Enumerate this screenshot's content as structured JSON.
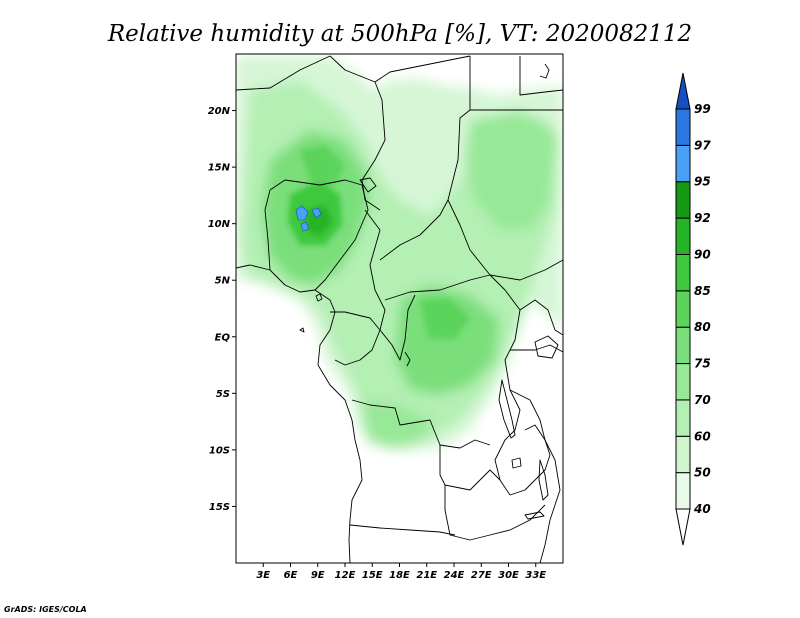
{
  "title": "Relative humidity at 500hPa [%], VT: 2020082112",
  "credit": "GrADS: IGES/COLA",
  "map": {
    "lon_range": [
      0,
      36
    ],
    "lat_range": [
      -20,
      25
    ],
    "lat_ticks": [
      {
        "value": 20,
        "label": "20N"
      },
      {
        "value": 15,
        "label": "15N"
      },
      {
        "value": 10,
        "label": "10N"
      },
      {
        "value": 5,
        "label": "5N"
      },
      {
        "value": 0,
        "label": "EQ"
      },
      {
        "value": -5,
        "label": "5S"
      },
      {
        "value": -10,
        "label": "10S"
      },
      {
        "value": -15,
        "label": "15S"
      }
    ],
    "lon_ticks": [
      {
        "value": 3,
        "label": "3E"
      },
      {
        "value": 6,
        "label": "6E"
      },
      {
        "value": 9,
        "label": "9E"
      },
      {
        "value": 12,
        "label": "12E"
      },
      {
        "value": 15,
        "label": "15E"
      },
      {
        "value": 18,
        "label": "18E"
      },
      {
        "value": 21,
        "label": "21E"
      },
      {
        "value": 24,
        "label": "24E"
      },
      {
        "value": 27,
        "label": "27E"
      },
      {
        "value": 30,
        "label": "30E"
      },
      {
        "value": 33,
        "label": "33E"
      }
    ]
  },
  "colorbar": {
    "levels": [
      "40",
      "50",
      "60",
      "70",
      "75",
      "80",
      "85",
      "90",
      "92",
      "95",
      "97",
      "99"
    ],
    "colors": [
      "#e8fae8",
      "#cff5cf",
      "#b4efb4",
      "#97e897",
      "#7ade7a",
      "#5cd45c",
      "#3ec83e",
      "#26b426",
      "#169a16",
      "#4aa0f5",
      "#2a78e0",
      "#1450c0"
    ]
  }
}
